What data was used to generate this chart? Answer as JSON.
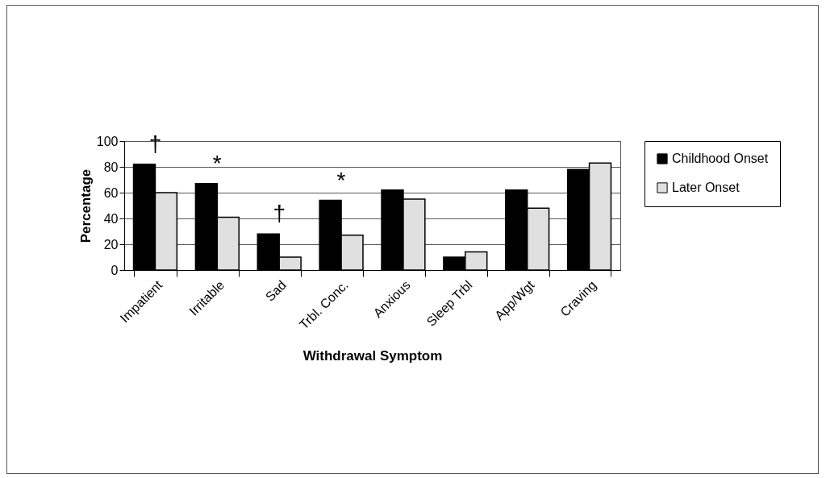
{
  "chart_data": {
    "type": "bar",
    "xlabel": "Withdrawal Symptom",
    "ylabel": "Percentage",
    "categories": [
      "Impatient",
      "Irritable",
      "Sad",
      "Trbl. Conc.",
      "Anxious",
      "Sleep Trbl",
      "App/Wgt",
      "Craving"
    ],
    "series": [
      {
        "name": "Childhood Onset",
        "color": "#000000",
        "values": [
          82,
          67,
          28,
          54,
          62,
          10,
          62,
          78
        ]
      },
      {
        "name": "Later Onset",
        "color": "#e0e0e0",
        "values": [
          60,
          41,
          10,
          27,
          55,
          14,
          48,
          83
        ]
      }
    ],
    "ylim": [
      0,
      100
    ],
    "yticks": [
      0,
      20,
      40,
      60,
      80,
      100
    ],
    "grid": "y",
    "legend": "right",
    "annotations": [
      "†",
      "*",
      "†",
      "*"
    ]
  }
}
